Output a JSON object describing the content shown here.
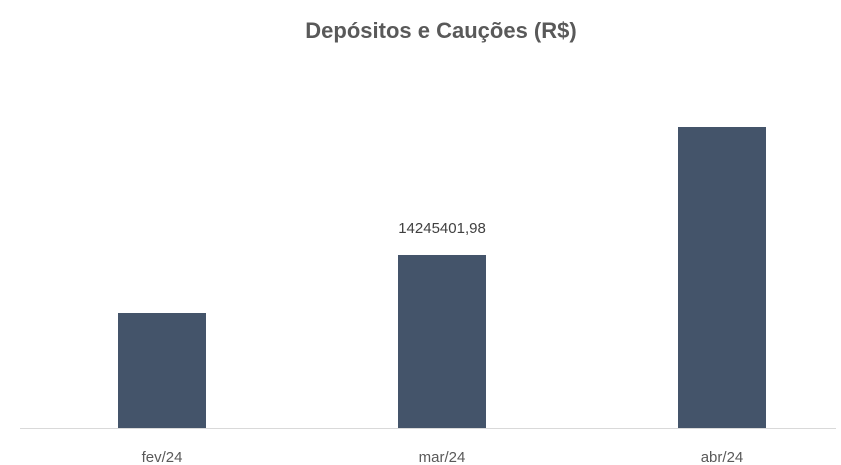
{
  "chart_data": {
    "type": "bar",
    "title": "Depósitos e Cauções (R$)",
    "categories": [
      "fev/24",
      "mar/24",
      "abr/24"
    ],
    "values": [
      9469000,
      14245401.98,
      24785000
    ],
    "value_labels": [
      null,
      "14245401,98",
      null
    ],
    "color": "#44546a"
  }
}
